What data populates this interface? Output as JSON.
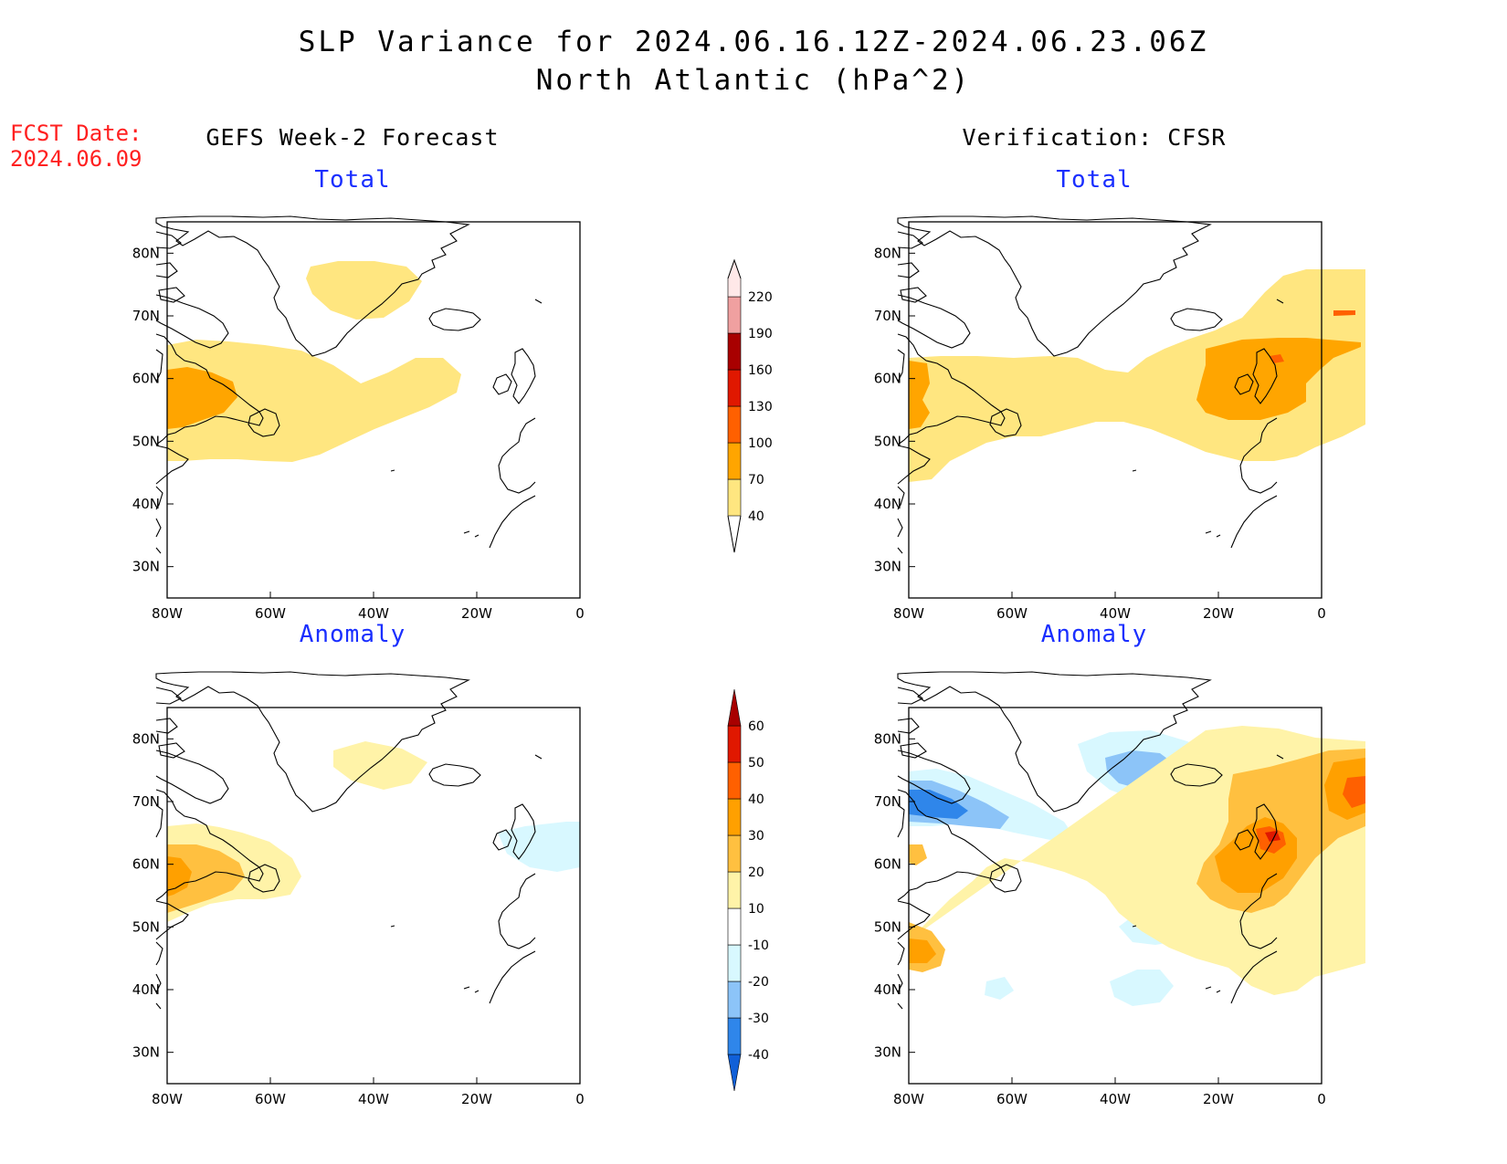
{
  "title": {
    "line1": "SLP Variance for 2024.06.16.12Z-2024.06.23.06Z",
    "line2": "North Atlantic (hPa^2)"
  },
  "fcst_date": {
    "label": "FCST Date:",
    "value": "2024.06.09"
  },
  "columns": {
    "left": "GEFS Week-2 Forecast",
    "right": "Verification: CFSR"
  },
  "panels": {
    "total": "Total",
    "anomaly": "Anomaly"
  },
  "axes": {
    "lon_ticks": [
      "80W",
      "60W",
      "40W",
      "20W",
      "0"
    ],
    "lat_ticks": [
      "30N",
      "40N",
      "50N",
      "60N",
      "70N",
      "80N"
    ],
    "lon_range": [
      -80,
      0
    ],
    "lat_range": [
      25,
      85
    ]
  },
  "colorbars": {
    "total": {
      "levels": [
        "40",
        "70",
        "100",
        "130",
        "160",
        "190",
        "220"
      ],
      "colors": [
        "#ffe680",
        "#ffa500",
        "#ff6000",
        "#e01800",
        "#a80000",
        "#f0a0a0",
        "#ffe8e8"
      ]
    },
    "anomaly": {
      "levels": [
        "-40",
        "-30",
        "-20",
        "-10",
        "10",
        "20",
        "30",
        "40",
        "50",
        "60"
      ],
      "colors": [
        "#1060d8",
        "#2f86ea",
        "#8cc4f8",
        "#d8f8ff",
        "#ffffff",
        "#fff3a8",
        "#ffc040",
        "#ffa000",
        "#ff6000",
        "#e01800",
        "#a80000"
      ]
    }
  }
}
